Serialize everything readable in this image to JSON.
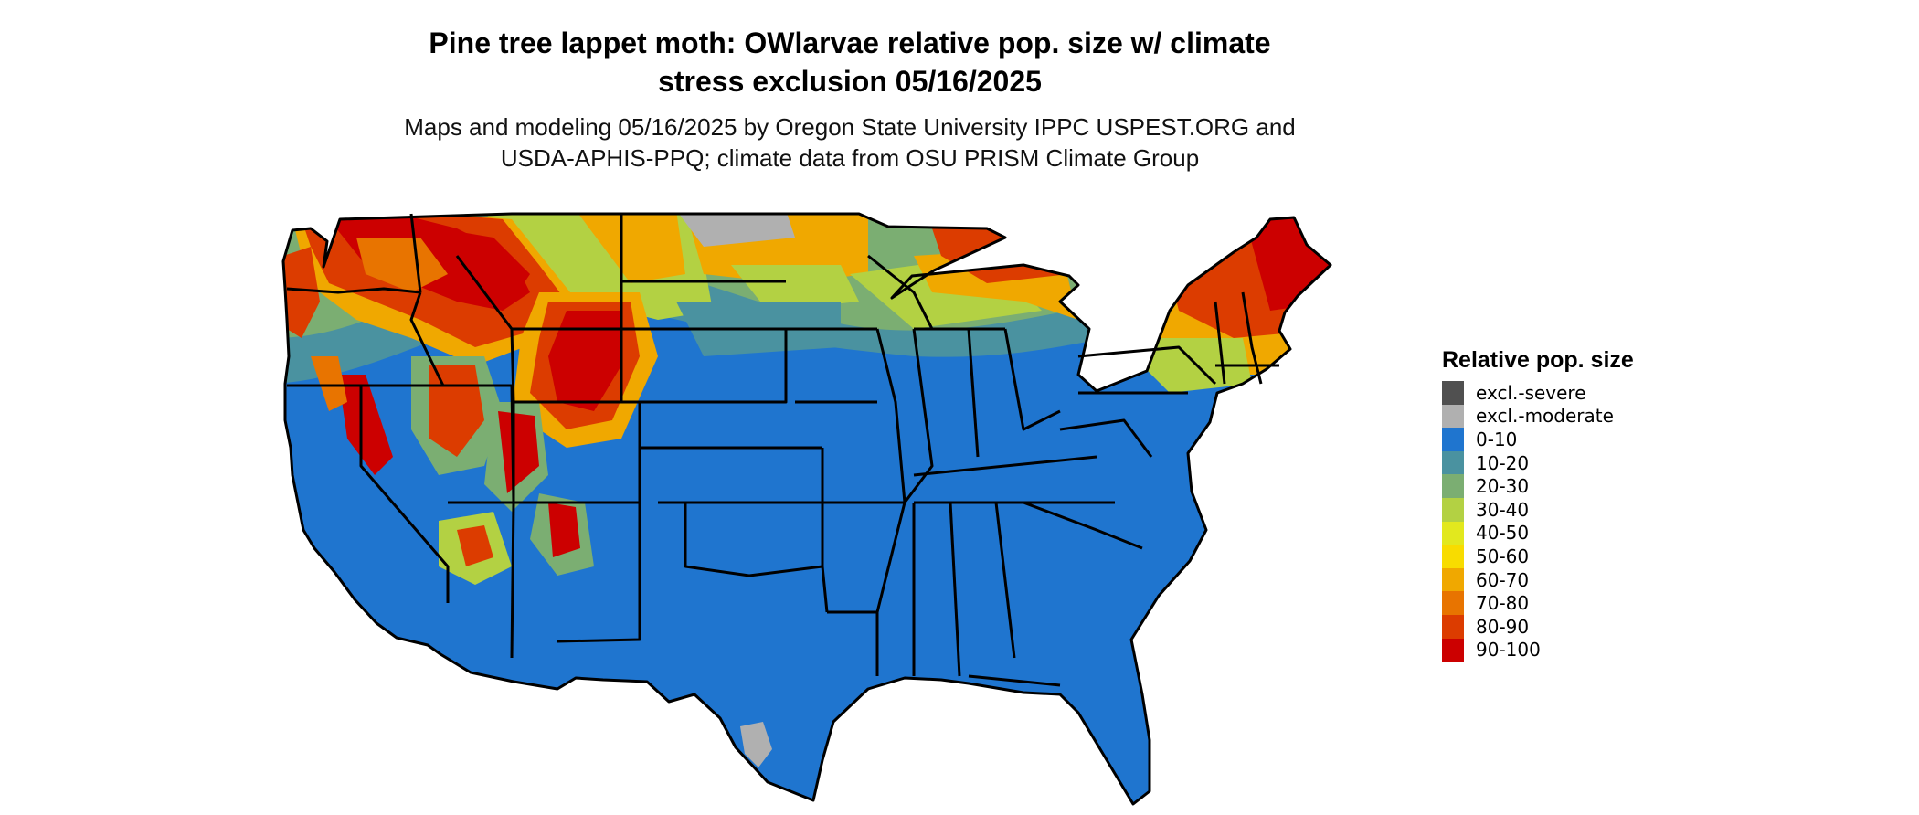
{
  "title_line1": "Pine tree lappet moth: OWlarvae relative pop. size w/ climate",
  "title_line2": "stress exclusion 05/16/2025",
  "subtitle_line1": "Maps and modeling 05/16/2025 by Oregon State University IPPC USPEST.ORG and",
  "subtitle_line2": "USDA-APHIS-PPQ; climate data from OSU PRISM Climate Group",
  "legend": {
    "title": "Relative pop. size",
    "items": [
      {
        "label": "excl.-severe",
        "color": "#505050"
      },
      {
        "label": "excl.-moderate",
        "color": "#b0b0b0"
      },
      {
        "label": "0-10",
        "color": "#1f75cf"
      },
      {
        "label": "10-20",
        "color": "#4a92a0"
      },
      {
        "label": "20-30",
        "color": "#7bae72"
      },
      {
        "label": "30-40",
        "color": "#b3d143"
      },
      {
        "label": "40-50",
        "color": "#e2e81e"
      },
      {
        "label": "50-60",
        "color": "#f8dc00"
      },
      {
        "label": "60-70",
        "color": "#f0a800"
      },
      {
        "label": "70-80",
        "color": "#e87400"
      },
      {
        "label": "80-90",
        "color": "#dc3c00"
      },
      {
        "label": "90-100",
        "color": "#cc0000"
      }
    ]
  }
}
